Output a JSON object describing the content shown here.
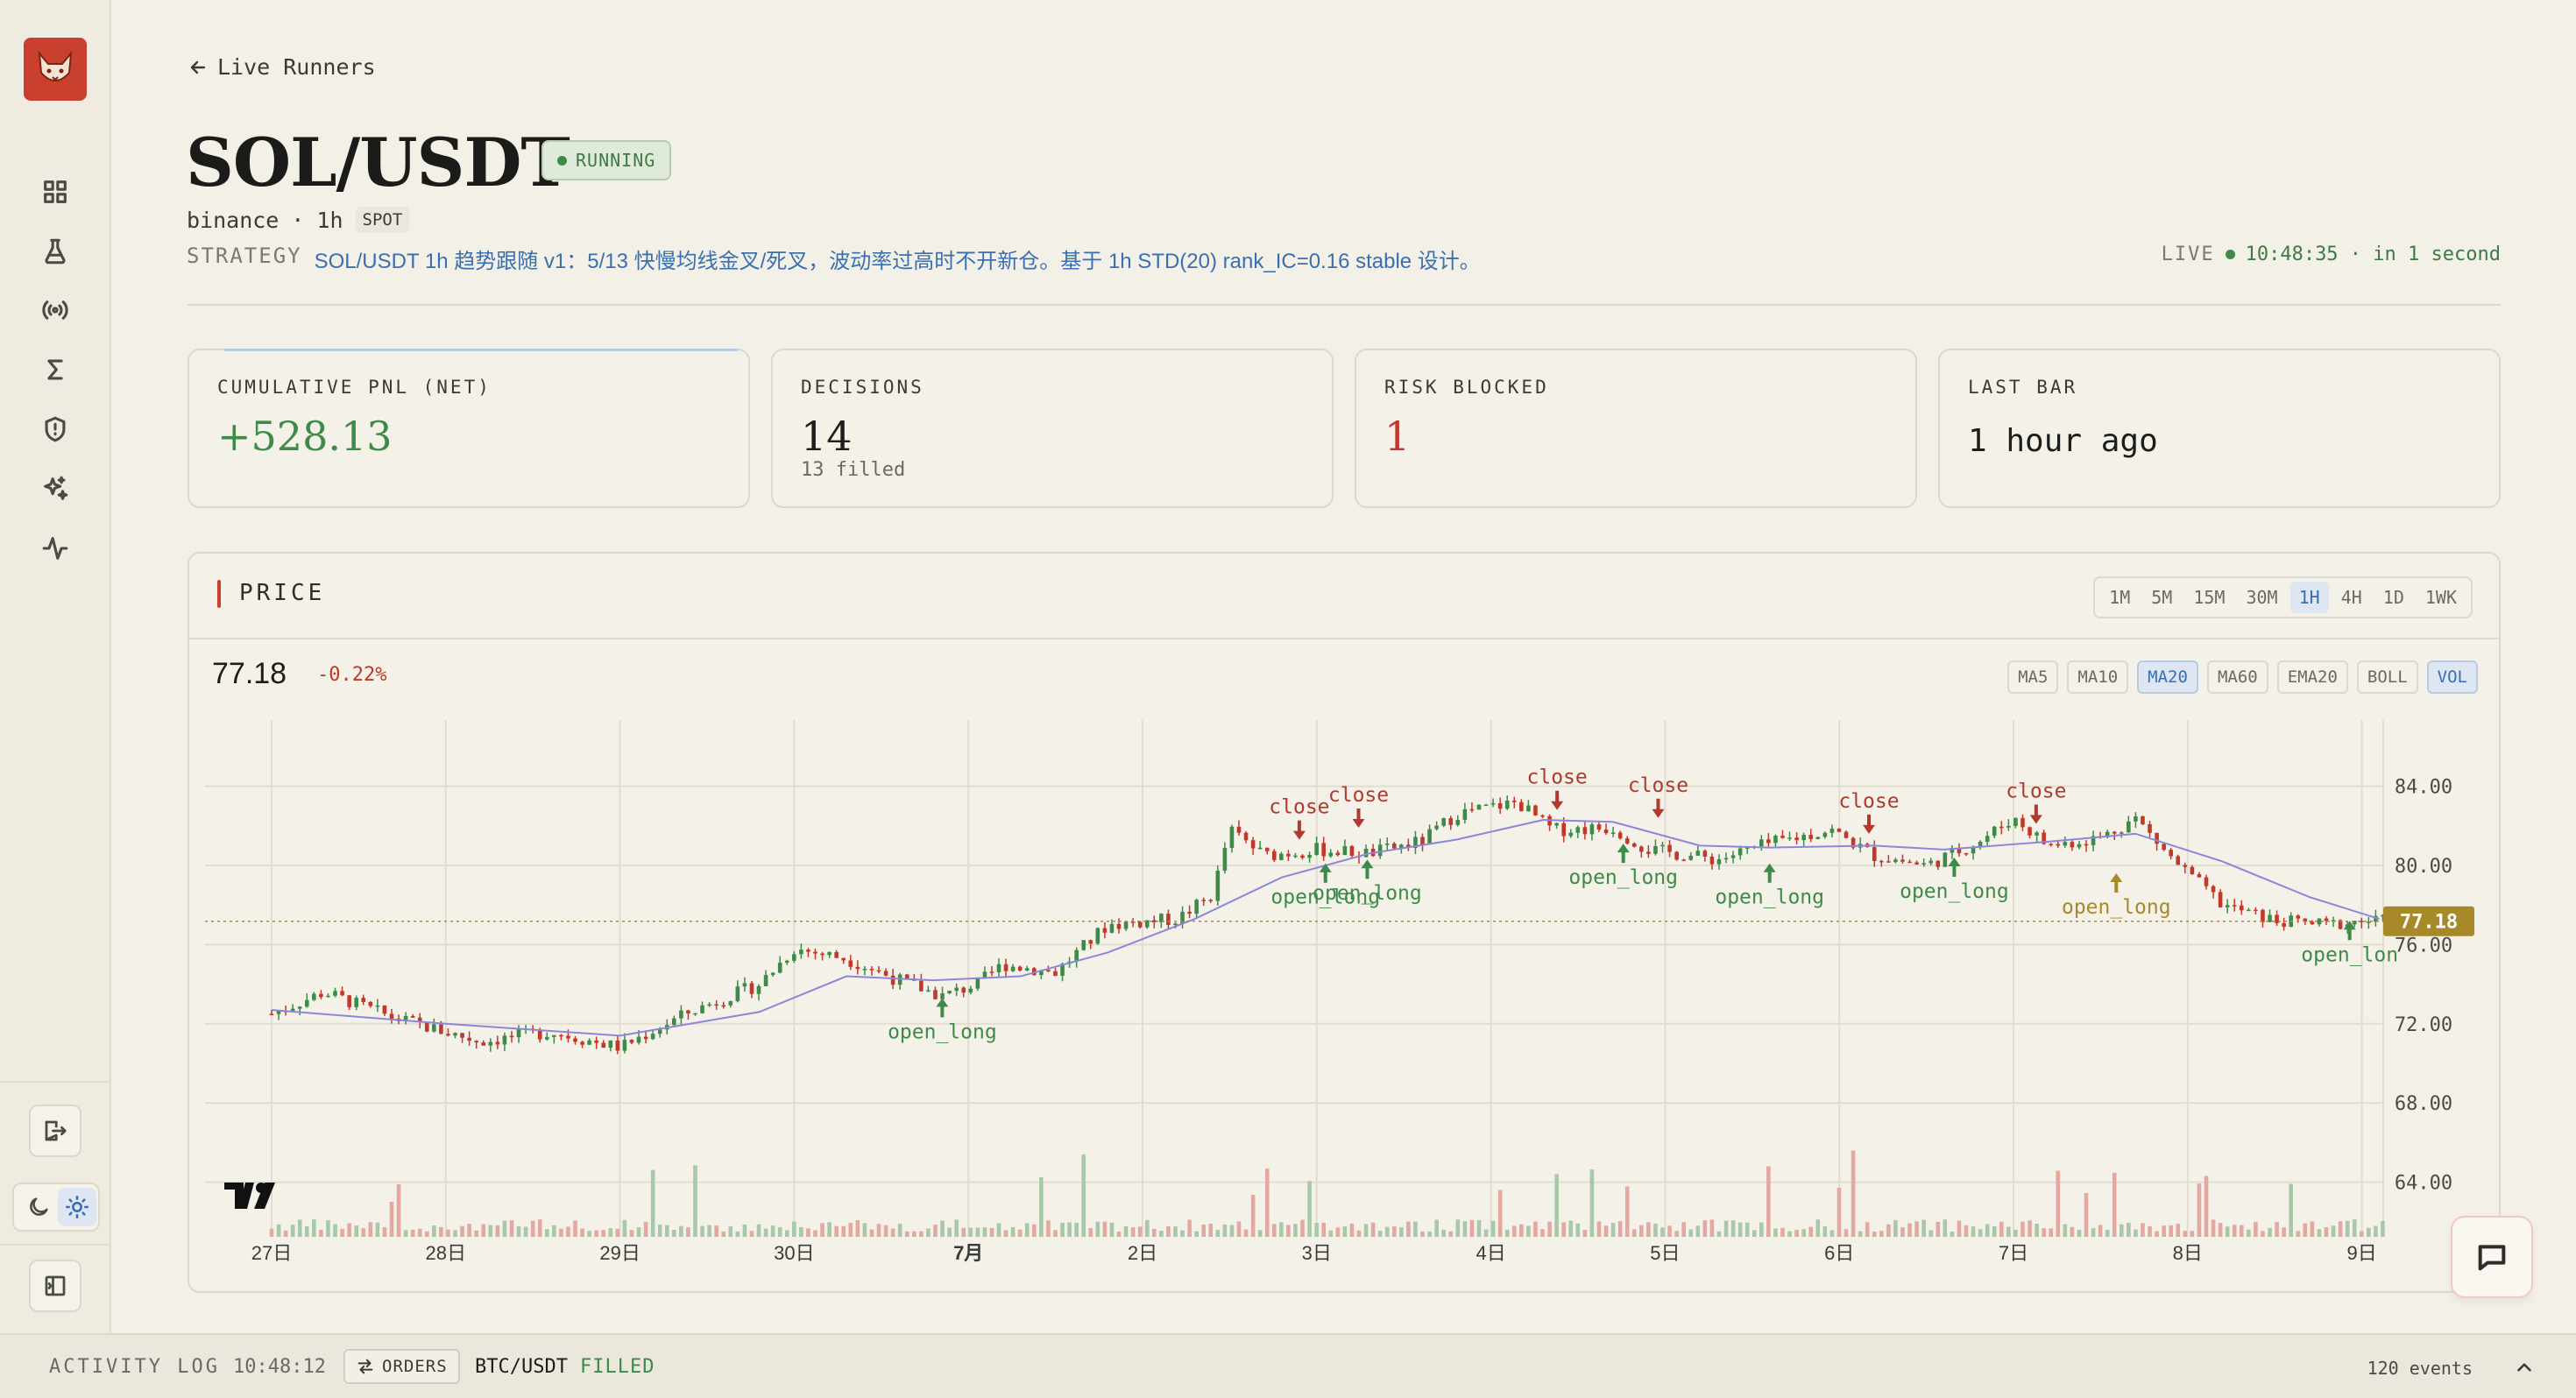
{
  "sidebar": {
    "logo": "fox-logo-icon",
    "items": [
      {
        "name": "dashboard",
        "icon": "grid-icon"
      },
      {
        "name": "lab",
        "icon": "flask-icon"
      },
      {
        "name": "live",
        "icon": "broadcast-icon"
      },
      {
        "name": "sum",
        "icon": "sigma-icon"
      },
      {
        "name": "risk",
        "icon": "shield-icon"
      },
      {
        "name": "ai",
        "icon": "sparkles-icon"
      },
      {
        "name": "activity",
        "icon": "pulse-icon"
      }
    ]
  },
  "header": {
    "back_label": "Live Runners",
    "title": "SOL/USDT",
    "status": "RUNNING",
    "exchange": "binance",
    "timeframe": "1h",
    "market": "SPOT",
    "strategy_label": "STRATEGY",
    "strategy_text": "SOL/USDT 1h 趋势跟随 v1：5/13 快慢均线金叉/死叉，波动率过高时不开新仓。基于 1h STD(20) rank_IC=0.16 stable 设计。",
    "live_label": "LIVE",
    "live_time": "10:48:35 · in 1 second"
  },
  "metrics": [
    {
      "label": "CUMULATIVE PNL (NET)",
      "value": "+528.13",
      "sub": "",
      "color": "#3e8a48"
    },
    {
      "label": "DECISIONS",
      "value": "14",
      "sub": "13 filled",
      "color": "#1d1d1b"
    },
    {
      "label": "RISK BLOCKED",
      "value": "1",
      "sub": "",
      "color": "#c0392b"
    },
    {
      "label": "LAST BAR",
      "value": "1 hour ago",
      "sub": "",
      "color": "#1d1d1b"
    }
  ],
  "price_panel": {
    "title": "PRICE",
    "timeframes": [
      "1M",
      "5M",
      "15M",
      "30M",
      "1H",
      "4H",
      "1D",
      "1WK"
    ],
    "active_timeframe": "1H",
    "last_price": "77.18",
    "change": "-0.22%",
    "indicators": [
      "MA5",
      "MA10",
      "MA20",
      "MA60",
      "EMA20",
      "BOLL",
      "VOL"
    ],
    "active_indicators": [
      "MA20",
      "VOL"
    ]
  },
  "chart_data": {
    "type": "candlestick",
    "y_ticks": [
      "84.00",
      "80.00",
      "76.00",
      "72.00",
      "68.00",
      "64.00"
    ],
    "ylim": [
      62.5,
      87
    ],
    "x_ticks": [
      "27日",
      "28日",
      "29日",
      "30日",
      "7月",
      "2日",
      "3日",
      "4日",
      "5日",
      "6日",
      "7日",
      "8日",
      "9日"
    ],
    "last_price_label": "77.18",
    "close_path": [
      {
        "x": 0.0,
        "y": 72.5
      },
      {
        "x": 0.3,
        "y": 73.6
      },
      {
        "x": 0.7,
        "y": 72.3
      },
      {
        "x": 1.2,
        "y": 71.1
      },
      {
        "x": 1.6,
        "y": 71.6
      },
      {
        "x": 2.0,
        "y": 70.8
      },
      {
        "x": 2.4,
        "y": 72.6
      },
      {
        "x": 2.8,
        "y": 74.0
      },
      {
        "x": 3.0,
        "y": 75.8
      },
      {
        "x": 3.3,
        "y": 75.3
      },
      {
        "x": 3.6,
        "y": 74.2
      },
      {
        "x": 3.85,
        "y": 73.4
      },
      {
        "x": 4.05,
        "y": 74.0
      },
      {
        "x": 4.2,
        "y": 75.0
      },
      {
        "x": 4.5,
        "y": 74.6
      },
      {
        "x": 4.8,
        "y": 77.0
      },
      {
        "x": 5.2,
        "y": 77.3
      },
      {
        "x": 5.4,
        "y": 78.5
      },
      {
        "x": 5.5,
        "y": 81.8
      },
      {
        "x": 5.7,
        "y": 80.5
      },
      {
        "x": 6.0,
        "y": 80.8
      },
      {
        "x": 6.3,
        "y": 80.6
      },
      {
        "x": 6.6,
        "y": 81.2
      },
      {
        "x": 6.8,
        "y": 82.6
      },
      {
        "x": 7.15,
        "y": 83.2
      },
      {
        "x": 7.35,
        "y": 81.8
      },
      {
        "x": 7.7,
        "y": 81.9
      },
      {
        "x": 7.9,
        "y": 80.8
      },
      {
        "x": 8.3,
        "y": 80.3
      },
      {
        "x": 8.6,
        "y": 81.1
      },
      {
        "x": 8.95,
        "y": 81.8
      },
      {
        "x": 9.2,
        "y": 80.5
      },
      {
        "x": 9.5,
        "y": 80.0
      },
      {
        "x": 9.8,
        "y": 81.2
      },
      {
        "x": 10.0,
        "y": 82.4
      },
      {
        "x": 10.2,
        "y": 81.0
      },
      {
        "x": 10.5,
        "y": 81.4
      },
      {
        "x": 10.7,
        "y": 82.4
      },
      {
        "x": 10.9,
        "y": 80.4
      },
      {
        "x": 11.2,
        "y": 78.0
      },
      {
        "x": 11.5,
        "y": 77.2
      },
      {
        "x": 11.8,
        "y": 77.0
      },
      {
        "x": 12.0,
        "y": 77.2
      },
      {
        "x": 12.12,
        "y": 77.18
      }
    ],
    "ma20_path": [
      {
        "x": 0.0,
        "y": 72.7
      },
      {
        "x": 1.0,
        "y": 72.0
      },
      {
        "x": 2.0,
        "y": 71.4
      },
      {
        "x": 2.8,
        "y": 72.6
      },
      {
        "x": 3.3,
        "y": 74.4
      },
      {
        "x": 3.8,
        "y": 74.2
      },
      {
        "x": 4.3,
        "y": 74.4
      },
      {
        "x": 4.8,
        "y": 75.6
      },
      {
        "x": 5.3,
        "y": 77.3
      },
      {
        "x": 5.8,
        "y": 79.4
      },
      {
        "x": 6.3,
        "y": 80.6
      },
      {
        "x": 6.8,
        "y": 81.3
      },
      {
        "x": 7.3,
        "y": 82.3
      },
      {
        "x": 7.7,
        "y": 82.2
      },
      {
        "x": 8.2,
        "y": 81.0
      },
      {
        "x": 8.6,
        "y": 80.9
      },
      {
        "x": 9.2,
        "y": 81.0
      },
      {
        "x": 9.6,
        "y": 80.8
      },
      {
        "x": 10.2,
        "y": 81.2
      },
      {
        "x": 10.7,
        "y": 81.6
      },
      {
        "x": 11.2,
        "y": 80.2
      },
      {
        "x": 11.7,
        "y": 78.4
      },
      {
        "x": 12.1,
        "y": 77.3
      }
    ],
    "markers": [
      {
        "type": "open_long",
        "label": "open_long",
        "x": 3.85,
        "y": 73.3,
        "color": "#3e8a48"
      },
      {
        "type": "close",
        "label": "close",
        "x": 5.9,
        "y": 81.3,
        "color": "#b03a2e"
      },
      {
        "type": "open_long",
        "label": "open_long",
        "x": 6.05,
        "y": 80.1,
        "color": "#3e8a48"
      },
      {
        "type": "close",
        "label": "close",
        "x": 6.24,
        "y": 81.9,
        "color": "#b03a2e"
      },
      {
        "type": "open_long",
        "label": "open_long",
        "x": 6.29,
        "y": 80.3,
        "color": "#3e8a48"
      },
      {
        "type": "close",
        "label": "close",
        "x": 7.38,
        "y": 82.8,
        "color": "#b03a2e"
      },
      {
        "type": "close",
        "label": "close",
        "x": 7.96,
        "y": 82.4,
        "color": "#b03a2e"
      },
      {
        "type": "open_long",
        "label": "open_long",
        "x": 7.76,
        "y": 81.1,
        "color": "#3e8a48"
      },
      {
        "type": "open_long",
        "label": "open_long",
        "x": 8.6,
        "y": 80.1,
        "color": "#3e8a48"
      },
      {
        "type": "close",
        "label": "close",
        "x": 9.17,
        "y": 81.6,
        "color": "#b03a2e"
      },
      {
        "type": "open_long",
        "label": "open_long",
        "x": 9.66,
        "y": 80.4,
        "color": "#3e8a48"
      },
      {
        "type": "close",
        "label": "close",
        "x": 10.13,
        "y": 82.1,
        "color": "#b03a2e"
      },
      {
        "type": "blocked",
        "label": "open_long",
        "x": 10.59,
        "y": 79.6,
        "color": "#a8892a"
      },
      {
        "type": "open_long",
        "label": "open_lon",
        "x": 11.93,
        "y": 77.2,
        "color": "#3e8a48"
      }
    ]
  },
  "activity_log": {
    "label": "ACTIVITY LOG",
    "time": "10:48:12",
    "orders_label": "ORDERS",
    "symbol": "BTC/USDT",
    "status": "FILLED",
    "events": "120 events"
  }
}
